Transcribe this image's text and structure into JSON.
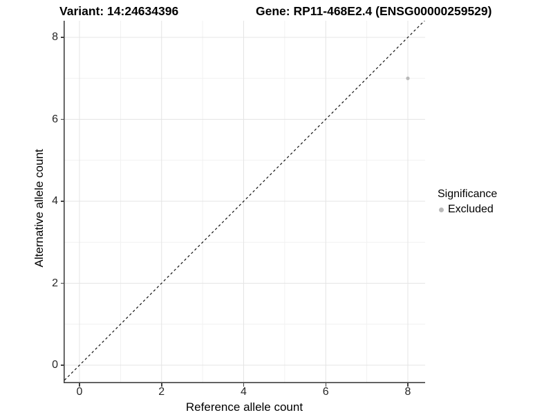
{
  "titles": {
    "variant": "Variant: 14:24634396",
    "gene": "Gene: RP11-468E2.4 (ENSG00000259529)"
  },
  "axes": {
    "x_label": "Reference allele count",
    "y_label": "Alternative allele count"
  },
  "legend": {
    "title": "Significance",
    "entries": [
      {
        "label": "Excluded",
        "color": "#b9b9b9"
      }
    ]
  },
  "colors": {
    "grid_major": "#e4e4e4",
    "grid_minor": "#f1f1f1",
    "axis_line": "#404040",
    "identity_line": "#111111",
    "point": "#b9b9b9",
    "tick_text": "#262626"
  },
  "chart_data": {
    "type": "scatter",
    "title": "Variant: 14:24634396   Gene: RP11-468E2.4 (ENSG00000259529)",
    "xlabel": "Reference allele count",
    "ylabel": "Alternative allele count",
    "xlim": [
      -0.4,
      8.42
    ],
    "ylim": [
      -0.44,
      8.45
    ],
    "x_ticks": [
      0,
      2,
      4,
      6,
      8
    ],
    "y_ticks": [
      0,
      2,
      4,
      6,
      8
    ],
    "x_minor_ticks": [
      1,
      3,
      5,
      7
    ],
    "y_minor_ticks": [
      1,
      3,
      5,
      7
    ],
    "grid": true,
    "identity_line": {
      "type": "y=x",
      "style": "dashed"
    },
    "series": [
      {
        "name": "Excluded",
        "color": "#b9b9b9",
        "points": [
          {
            "x": 8,
            "y": 7
          }
        ]
      }
    ],
    "legend_position": "right"
  }
}
